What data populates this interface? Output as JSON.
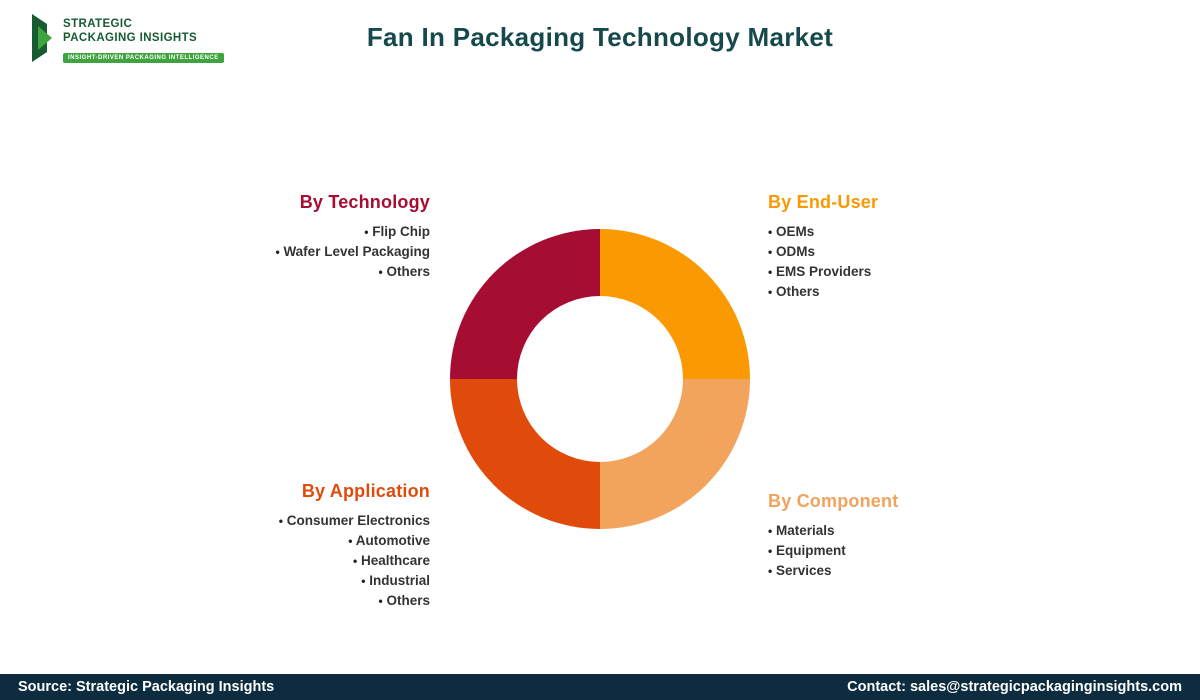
{
  "logo": {
    "line1": "STRATEGIC",
    "line2": "PACKAGING INSIGHTS",
    "tagline": "INSIGHT-DRIVEN PACKAGING INTELLIGENCE"
  },
  "title": "Fan In Packaging Technology Market",
  "groups": {
    "technology": {
      "heading": "By Technology",
      "items": [
        "Flip Chip",
        "Wafer Level Packaging",
        "Others"
      ]
    },
    "end_user": {
      "heading": "By End-User",
      "items": [
        "OEMs",
        "ODMs",
        "EMS Providers",
        "Others"
      ]
    },
    "application": {
      "heading": "By Application",
      "items": [
        "Consumer Electronics",
        "Automotive",
        "Healthcare",
        "Industrial",
        "Others"
      ]
    },
    "component": {
      "heading": "By Component",
      "items": [
        "Materials",
        "Equipment",
        "Services"
      ]
    }
  },
  "footer": {
    "source": "Source: Strategic Packaging Insights",
    "contact": "Contact: sales@strategicpackaginginsights.com"
  },
  "colors": {
    "title": "#16494C",
    "footer-bg": "#0D2C3F",
    "tech": "#A60D33",
    "enduser": "#FB9902",
    "component": "#F2A35C",
    "application": "#E04B0C",
    "logo-dark": "#175B33",
    "logo-light": "#3FA33F"
  }
}
